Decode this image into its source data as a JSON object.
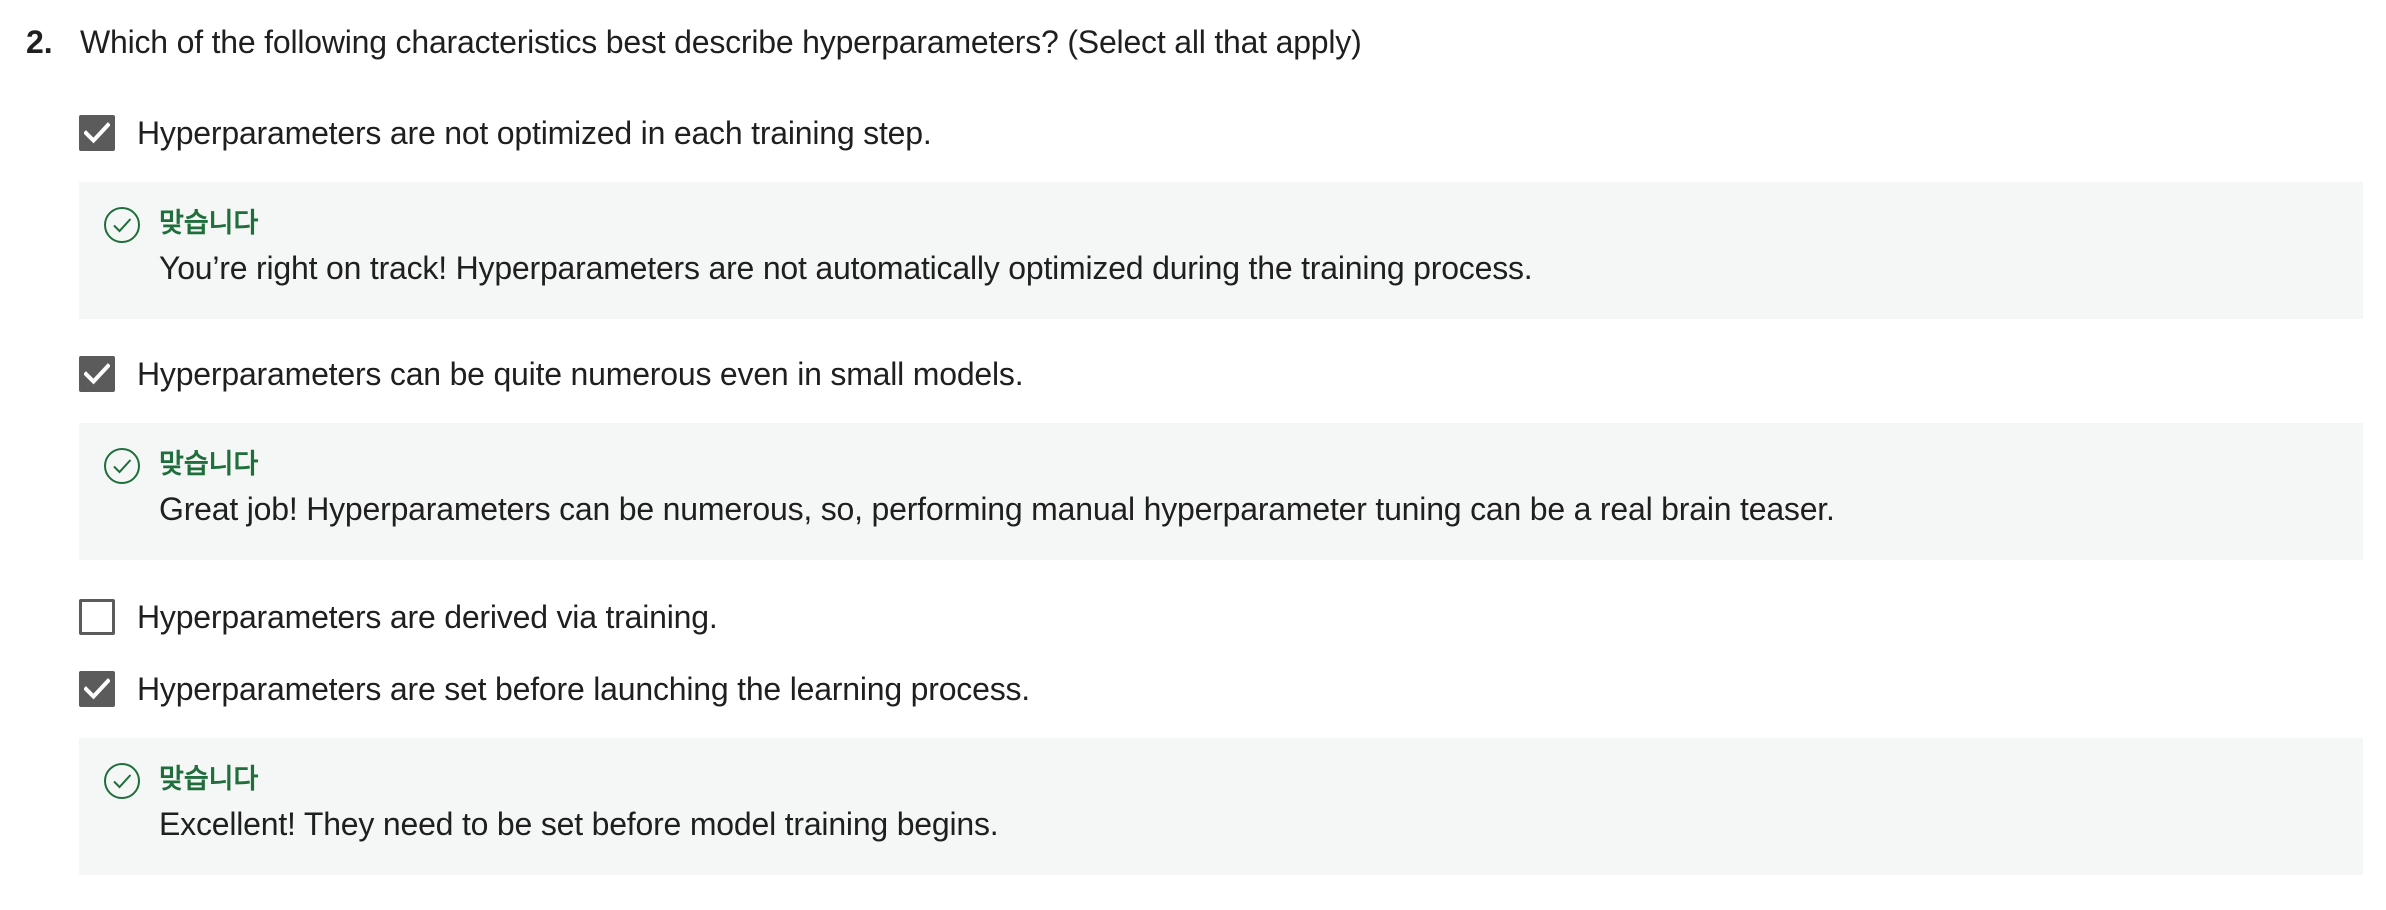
{
  "question": {
    "number": "2.",
    "text": "Which of the following characteristics best describe hyperparameters? (Select all that apply)"
  },
  "options": [
    {
      "label": "Hyperparameters are not optimized in each training step.",
      "checked": true,
      "feedback": {
        "status": "맞습니다",
        "text": "You’re right on track! Hyperparameters are not automatically optimized during the training process."
      }
    },
    {
      "label": "Hyperparameters can be quite numerous even in small models.",
      "checked": true,
      "feedback": {
        "status": "맞습니다",
        "text": "Great job! Hyperparameters can be numerous, so, performing manual hyperparameter tuning can be a real brain teaser."
      }
    },
    {
      "label": "Hyperparameters are derived via training.",
      "checked": false
    },
    {
      "label": "Hyperparameters are set before launching the learning process.",
      "checked": true,
      "feedback": {
        "status": "맞습니다",
        "text": "Excellent! They need to be set before model training begins."
      }
    }
  ],
  "colors": {
    "checkbox": "#5b5b5b",
    "correct": "#1f6e3c",
    "feedback_bg": "#f4f7f5"
  },
  "icons": {
    "checked": "checkmark-icon",
    "correct": "check-circle-icon"
  }
}
